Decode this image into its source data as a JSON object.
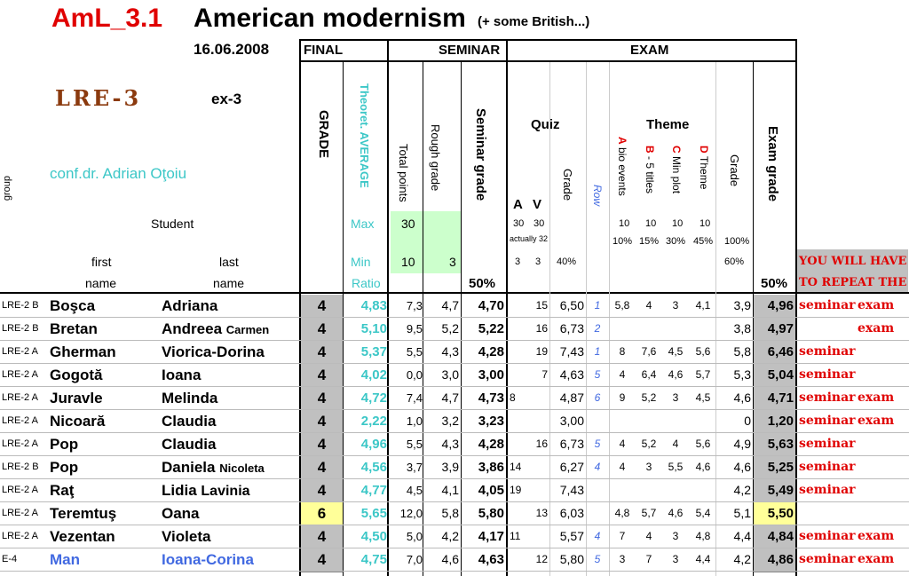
{
  "header": {
    "code": "AmL_3.1",
    "title": "American modernism",
    "subtitle": "(+ some British...)",
    "date": "16.06.2008",
    "course": "LRE-3",
    "exam_code": "ex-3",
    "teacher": "conf.dr. Adrian Oţoiu"
  },
  "labels": {
    "final": "FINAL",
    "seminar": "SEMINAR",
    "exam": "EXAM",
    "grade": "GRADE",
    "theoret_avg": "Theoret. AVERAGE",
    "total_points": "Total points",
    "rough_grade": "Rough grade",
    "seminar_grade": "Seminar grade",
    "quiz": "Quiz",
    "a": "A",
    "v": "V",
    "quiz_grade": "Grade",
    "row": "Row",
    "theme": "Theme",
    "col_a_letter": "A",
    "col_a_rest": "bio events",
    "col_b_letter": "B",
    "col_b_rest": "- 5 titles",
    "col_c_letter": "C",
    "col_c_rest": "Min plot",
    "col_d_letter": "D",
    "col_d_rest": "Theme",
    "theme_grade": "Grade",
    "exam_grade": "Exam grade",
    "group": "group",
    "student": "Student",
    "max": "Max",
    "min": "Min",
    "ratio": "Ratio",
    "first": "first",
    "last": "last",
    "name1": "name",
    "name2": "name",
    "pct50_seminar": "50%",
    "pct50_exam": "50%",
    "repeat_1": "YOU WILL HAVE",
    "repeat_2": "TO REPEAT THE"
  },
  "limits": {
    "max_total": "30",
    "min_total": "10",
    "min_rough": "3",
    "quiz_a_max": "30",
    "quiz_v_max": "30",
    "actually": "actually 32",
    "quiz_a_min": "3",
    "quiz_v_min": "3",
    "quiz_grade_pct": "40%",
    "a_pts": "10",
    "a_pct": "10%",
    "b_pts": "10",
    "b_pct": "15%",
    "c_pts": "10",
    "c_pct": "30%",
    "d_pts": "10",
    "d_pct": "45%",
    "theme_pct": "100%",
    "theme_min_pct": "60%"
  },
  "students": [
    {
      "group": "LRE-2  B",
      "first": "Boşca",
      "last": "Adriana",
      "last2": "",
      "grade": "4",
      "avg": "4,83",
      "total": "7,3",
      "rough": "4,7",
      "sem": "4,70",
      "qa": "",
      "qv": "15",
      "qgrade": "6,50",
      "row": "1",
      "ta": "5,8",
      "tb": "4",
      "tc": "3",
      "td": "4,1",
      "tgrade": "3,9",
      "exam": "4,96",
      "r1": "seminar",
      "r2": "exam",
      "hl": false,
      "blue": false
    },
    {
      "group": "LRE-2  B",
      "first": "Bretan",
      "last": "Andreea",
      "last2": "Carmen",
      "grade": "4",
      "avg": "5,10",
      "total": "9,5",
      "rough": "5,2",
      "sem": "5,22",
      "qa": "",
      "qv": "16",
      "qgrade": "6,73",
      "row": "2",
      "ta": "",
      "tb": "",
      "tc": "",
      "td": "",
      "tgrade": "3,8",
      "exam": "4,97",
      "r1": "",
      "r2": "exam",
      "hl": false,
      "blue": false
    },
    {
      "group": "LRE-2  A",
      "first": "Gherman",
      "last": "Viorica-Dorina",
      "last2": "",
      "grade": "4",
      "avg": "5,37",
      "total": "5,5",
      "rough": "4,3",
      "sem": "4,28",
      "qa": "",
      "qv": "19",
      "qgrade": "7,43",
      "row": "1",
      "ta": "8",
      "tb": "7,6",
      "tc": "4,5",
      "td": "5,6",
      "tgrade": "5,8",
      "exam": "6,46",
      "r1": "seminar",
      "r2": "",
      "hl": false,
      "blue": false
    },
    {
      "group": "LRE-2  A",
      "first": "Gogotă",
      "last": "Ioana",
      "last2": "",
      "grade": "4",
      "avg": "4,02",
      "total": "0,0",
      "rough": "3,0",
      "sem": "3,00",
      "qa": "",
      "qv": "7",
      "qgrade": "4,63",
      "row": "5",
      "ta": "4",
      "tb": "6,4",
      "tc": "4,6",
      "td": "5,7",
      "tgrade": "5,3",
      "exam": "5,04",
      "r1": "seminar",
      "r2": "",
      "hl": false,
      "blue": false
    },
    {
      "group": "LRE-2  A",
      "first": "Juravle",
      "last": "Melinda",
      "last2": "",
      "grade": "4",
      "avg": "4,72",
      "total": "7,4",
      "rough": "4,7",
      "sem": "4,73",
      "qa": "8",
      "qv": "",
      "qgrade": "4,87",
      "row": "6",
      "ta": "9",
      "tb": "5,2",
      "tc": "3",
      "td": "4,5",
      "tgrade": "4,6",
      "exam": "4,71",
      "r1": "seminar",
      "r2": "exam",
      "hl": false,
      "blue": false
    },
    {
      "group": "LRE-2  A",
      "first": "Nicoară",
      "last": "Claudia",
      "last2": "",
      "grade": "4",
      "avg": "2,22",
      "total": "1,0",
      "rough": "3,2",
      "sem": "3,23",
      "qa": "",
      "qv": "",
      "qgrade": "3,00",
      "row": "",
      "ta": "",
      "tb": "",
      "tc": "",
      "td": "",
      "tgrade": "0",
      "exam": "1,20",
      "r1": "seminar",
      "r2": "exam",
      "hl": false,
      "blue": false
    },
    {
      "group": "LRE-2  A",
      "first": "Pop",
      "last": "Claudia",
      "last2": "",
      "grade": "4",
      "avg": "4,96",
      "total": "5,5",
      "rough": "4,3",
      "sem": "4,28",
      "qa": "",
      "qv": "16",
      "qgrade": "6,73",
      "row": "5",
      "ta": "4",
      "tb": "5,2",
      "tc": "4",
      "td": "5,6",
      "tgrade": "4,9",
      "exam": "5,63",
      "r1": "seminar",
      "r2": "",
      "hl": false,
      "blue": false
    },
    {
      "group": "LRE-2  B",
      "first": "Pop",
      "last": "Daniela",
      "last2": "Nicoleta",
      "grade": "4",
      "avg": "4,56",
      "total": "3,7",
      "rough": "3,9",
      "sem": "3,86",
      "qa": "14",
      "qv": "",
      "qgrade": "6,27",
      "row": "4",
      "ta": "4",
      "tb": "3",
      "tc": "5,5",
      "td": "4,6",
      "tgrade": "4,6",
      "exam": "5,25",
      "r1": "seminar",
      "r2": "",
      "hl": false,
      "blue": false
    },
    {
      "group": "LRE-2  A",
      "first": "Raţ",
      "last": "Lidia",
      "last2": "Lavinia",
      "grade": "4",
      "avg": "4,77",
      "total": "4,5",
      "rough": "4,1",
      "sem": "4,05",
      "qa": "19",
      "qv": "",
      "qgrade": "7,43",
      "row": "",
      "ta": "",
      "tb": "",
      "tc": "",
      "td": "",
      "tgrade": "4,2",
      "exam": "5,49",
      "r1": "seminar",
      "r2": "",
      "hl": false,
      "blue": false
    },
    {
      "group": "LRE-2  A",
      "first": "Teremtuş",
      "last": "Oana",
      "last2": "",
      "grade": "6",
      "avg": "5,65",
      "total": "12,0",
      "rough": "5,8",
      "sem": "5,80",
      "qa": "",
      "qv": "13",
      "qgrade": "6,03",
      "row": "",
      "ta": "4,8",
      "tb": "5,7",
      "tc": "4,6",
      "td": "5,4",
      "tgrade": "5,1",
      "exam": "5,50",
      "r1": "",
      "r2": "",
      "hl": true,
      "blue": false
    },
    {
      "group": "LRE-2  A",
      "first": "Vezentan",
      "last": "Violeta",
      "last2": "",
      "grade": "4",
      "avg": "4,50",
      "total": "5,0",
      "rough": "4,2",
      "sem": "4,17",
      "qa": "11",
      "qv": "",
      "qgrade": "5,57",
      "row": "4",
      "ta": "7",
      "tb": "4",
      "tc": "3",
      "td": "4,8",
      "tgrade": "4,4",
      "exam": "4,84",
      "r1": "seminar",
      "r2": "exam",
      "hl": false,
      "blue": false
    },
    {
      "group": "E-4",
      "first": "Man",
      "last": "Ioana-Corina",
      "last2": "",
      "grade": "4",
      "avg": "4,75",
      "total": "7,0",
      "rough": "4,6",
      "sem": "4,63",
      "qa": "",
      "qv": "12",
      "qgrade": "5,80",
      "row": "5",
      "ta": "3",
      "tb": "7",
      "tc": "3",
      "td": "4,4",
      "tgrade": "4,2",
      "exam": "4,86",
      "r1": "seminar",
      "r2": "exam",
      "hl": false,
      "blue": true
    }
  ],
  "colors": {
    "title_red": "#ff0000",
    "teal": "#3cc7c7",
    "grade_gray": "#c0c0c0",
    "highlight_yellow": "#ffff99",
    "max_min_green": "#ccffcc",
    "repeat_bg": "#c0c0c0",
    "blue_name": "#4169e1"
  }
}
